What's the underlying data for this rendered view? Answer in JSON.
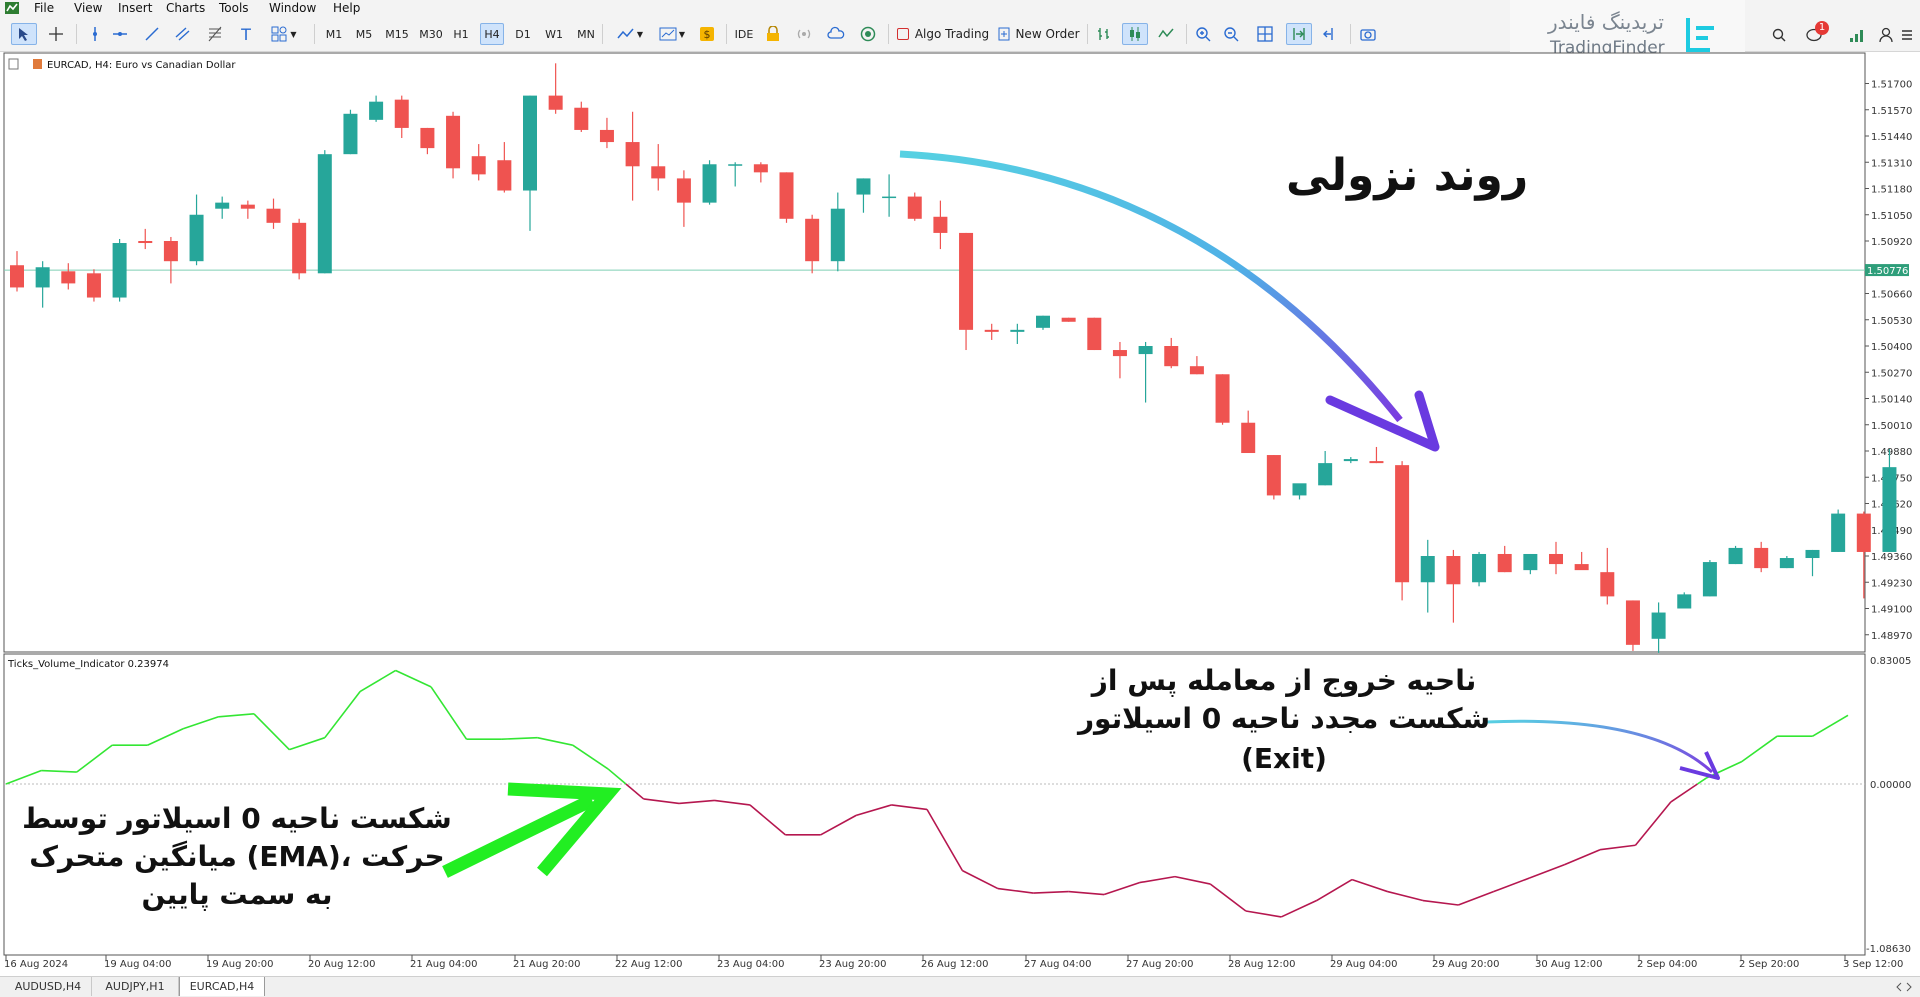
{
  "menu": {
    "items": [
      "File",
      "View",
      "Insert",
      "Charts",
      "Tools",
      "Window",
      "Help"
    ]
  },
  "toolbar": {
    "timeframes": [
      "M1",
      "M5",
      "M15",
      "M30",
      "H1",
      "H4",
      "D1",
      "W1",
      "MN"
    ],
    "selected_timeframe": "H4",
    "ide_label": "IDE",
    "algo_trading_label": "Algo Trading",
    "new_order_label": "New Order",
    "notification_count": "1"
  },
  "watermark": {
    "fa": "تریدینگ فایندر",
    "en": "TradingFinder"
  },
  "chart": {
    "title": "EURCAD, H4:  Euro vs Canadian Dollar",
    "current_price": "1.50776",
    "price_labels": [
      "1.51700",
      "1.51570",
      "1.51440",
      "1.51310",
      "1.51180",
      "1.51050",
      "1.50920",
      "1.50776",
      "1.50660",
      "1.50530",
      "1.50400",
      "1.50270",
      "1.50140",
      "1.50010",
      "1.49880",
      "1.49750",
      "1.49620",
      "1.49490",
      "1.49360",
      "1.49230",
      "1.49100",
      "1.48970"
    ],
    "candles": [
      {
        "o": 1.508,
        "h": 1.5087,
        "l": 1.5067,
        "c": 1.5069
      },
      {
        "o": 1.5069,
        "h": 1.5082,
        "l": 1.5059,
        "c": 1.5079
      },
      {
        "o": 1.5077,
        "h": 1.5081,
        "l": 1.5068,
        "c": 1.5071
      },
      {
        "o": 1.5076,
        "h": 1.5078,
        "l": 1.5062,
        "c": 1.5064
      },
      {
        "o": 1.5064,
        "h": 1.5093,
        "l": 1.5062,
        "c": 1.5091
      },
      {
        "o": 1.5092,
        "h": 1.5098,
        "l": 1.5088,
        "c": 1.5091
      },
      {
        "o": 1.5092,
        "h": 1.5094,
        "l": 1.5071,
        "c": 1.5082
      },
      {
        "o": 1.5082,
        "h": 1.5115,
        "l": 1.508,
        "c": 1.5105
      },
      {
        "o": 1.5108,
        "h": 1.5114,
        "l": 1.5103,
        "c": 1.5111
      },
      {
        "o": 1.511,
        "h": 1.5112,
        "l": 1.5103,
        "c": 1.5108
      },
      {
        "o": 1.5108,
        "h": 1.5113,
        "l": 1.5098,
        "c": 1.5101
      },
      {
        "o": 1.5101,
        "h": 1.5103,
        "l": 1.5073,
        "c": 1.5076
      },
      {
        "o": 1.5076,
        "h": 1.5137,
        "l": 1.5076,
        "c": 1.5135
      },
      {
        "o": 1.5135,
        "h": 1.5157,
        "l": 1.5135,
        "c": 1.5155
      },
      {
        "o": 1.5152,
        "h": 1.5164,
        "l": 1.5151,
        "c": 1.5161
      },
      {
        "o": 1.5162,
        "h": 1.5164,
        "l": 1.5143,
        "c": 1.5148
      },
      {
        "o": 1.5148,
        "h": 1.5148,
        "l": 1.5135,
        "c": 1.5138
      },
      {
        "o": 1.5154,
        "h": 1.5156,
        "l": 1.5123,
        "c": 1.5128
      },
      {
        "o": 1.5134,
        "h": 1.514,
        "l": 1.5122,
        "c": 1.5125
      },
      {
        "o": 1.5132,
        "h": 1.5141,
        "l": 1.5116,
        "c": 1.5117
      },
      {
        "o": 1.5117,
        "h": 1.5164,
        "l": 1.5097,
        "c": 1.5164
      },
      {
        "o": 1.5164,
        "h": 1.518,
        "l": 1.5155,
        "c": 1.5157
      },
      {
        "o": 1.5158,
        "h": 1.5161,
        "l": 1.5146,
        "c": 1.5147
      },
      {
        "o": 1.5147,
        "h": 1.5153,
        "l": 1.5138,
        "c": 1.5141
      },
      {
        "o": 1.5141,
        "h": 1.5156,
        "l": 1.5112,
        "c": 1.5129
      },
      {
        "o": 1.5129,
        "h": 1.514,
        "l": 1.5117,
        "c": 1.5123
      },
      {
        "o": 1.5123,
        "h": 1.5127,
        "l": 1.5099,
        "c": 1.5111
      },
      {
        "o": 1.5111,
        "h": 1.5132,
        "l": 1.511,
        "c": 1.513
      },
      {
        "o": 1.513,
        "h": 1.5131,
        "l": 1.5119,
        "c": 1.513
      },
      {
        "o": 1.513,
        "h": 1.5131,
        "l": 1.5121,
        "c": 1.5126
      },
      {
        "o": 1.5126,
        "h": 1.5126,
        "l": 1.5101,
        "c": 1.5103
      },
      {
        "o": 1.5103,
        "h": 1.5105,
        "l": 1.5076,
        "c": 1.5082
      },
      {
        "o": 1.5082,
        "h": 1.5116,
        "l": 1.5077,
        "c": 1.5108
      },
      {
        "o": 1.5115,
        "h": 1.5123,
        "l": 1.5106,
        "c": 1.5123
      },
      {
        "o": 1.5114,
        "h": 1.5125,
        "l": 1.5104,
        "c": 1.5114
      },
      {
        "o": 1.5114,
        "h": 1.5116,
        "l": 1.5102,
        "c": 1.5103
      },
      {
        "o": 1.5104,
        "h": 1.5112,
        "l": 1.5088,
        "c": 1.5096
      },
      {
        "o": 1.5096,
        "h": 1.5096,
        "l": 1.5038,
        "c": 1.5048
      },
      {
        "o": 1.5048,
        "h": 1.5051,
        "l": 1.5043,
        "c": 1.5047
      },
      {
        "o": 1.5047,
        "h": 1.5051,
        "l": 1.5041,
        "c": 1.5048
      },
      {
        "o": 1.5049,
        "h": 1.5055,
        "l": 1.5048,
        "c": 1.5055
      },
      {
        "o": 1.5054,
        "h": 1.5054,
        "l": 1.5052,
        "c": 1.5052
      },
      {
        "o": 1.5054,
        "h": 1.5054,
        "l": 1.5038,
        "c": 1.5038
      },
      {
        "o": 1.5038,
        "h": 1.5042,
        "l": 1.5024,
        "c": 1.5035
      },
      {
        "o": 1.5036,
        "h": 1.5042,
        "l": 1.5012,
        "c": 1.504
      },
      {
        "o": 1.504,
        "h": 1.5044,
        "l": 1.5029,
        "c": 1.503
      },
      {
        "o": 1.503,
        "h": 1.5035,
        "l": 1.5026,
        "c": 1.5026
      },
      {
        "o": 1.5026,
        "h": 1.5026,
        "l": 1.5001,
        "c": 1.5002
      },
      {
        "o": 1.5002,
        "h": 1.5008,
        "l": 1.4988,
        "c": 1.4987
      },
      {
        "o": 1.4986,
        "h": 1.4986,
        "l": 1.4964,
        "c": 1.4966
      },
      {
        "o": 1.4966,
        "h": 1.4971,
        "l": 1.4964,
        "c": 1.4972
      },
      {
        "o": 1.4971,
        "h": 1.4988,
        "l": 1.4971,
        "c": 1.4982
      },
      {
        "o": 1.4983,
        "h": 1.4985,
        "l": 1.4982,
        "c": 1.4984
      },
      {
        "o": 1.4983,
        "h": 1.499,
        "l": 1.4982,
        "c": 1.4982
      },
      {
        "o": 1.4981,
        "h": 1.4983,
        "l": 1.4914,
        "c": 1.4923
      },
      {
        "o": 1.4923,
        "h": 1.4944,
        "l": 1.4908,
        "c": 1.4936
      },
      {
        "o": 1.4936,
        "h": 1.4939,
        "l": 1.4903,
        "c": 1.4922
      },
      {
        "o": 1.4923,
        "h": 1.4938,
        "l": 1.4921,
        "c": 1.4937
      },
      {
        "o": 1.4937,
        "h": 1.4941,
        "l": 1.4928,
        "c": 1.4928
      },
      {
        "o": 1.4929,
        "h": 1.4937,
        "l": 1.4927,
        "c": 1.4937
      },
      {
        "o": 1.4937,
        "h": 1.4943,
        "l": 1.4927,
        "c": 1.4932
      },
      {
        "o": 1.4932,
        "h": 1.4938,
        "l": 1.493,
        "c": 1.4929
      },
      {
        "o": 1.4928,
        "h": 1.494,
        "l": 1.4912,
        "c": 1.4916
      },
      {
        "o": 1.4914,
        "h": 1.4914,
        "l": 1.4889,
        "c": 1.4892
      },
      {
        "o": 1.4895,
        "h": 1.4913,
        "l": 1.4888,
        "c": 1.4908
      },
      {
        "o": 1.491,
        "h": 1.4918,
        "l": 1.491,
        "c": 1.4917
      },
      {
        "o": 1.4916,
        "h": 1.4934,
        "l": 1.4916,
        "c": 1.4933
      },
      {
        "o": 1.4932,
        "h": 1.4941,
        "l": 1.4932,
        "c": 1.494
      },
      {
        "o": 1.494,
        "h": 1.4943,
        "l": 1.4928,
        "c": 1.493
      },
      {
        "o": 1.493,
        "h": 1.4936,
        "l": 1.493,
        "c": 1.4935
      },
      {
        "o": 1.4935,
        "h": 1.4939,
        "l": 1.4926,
        "c": 1.4939
      },
      {
        "o": 1.4938,
        "h": 1.4959,
        "l": 1.4938,
        "c": 1.4957
      },
      {
        "o": 1.4957,
        "h": 1.4958,
        "l": 1.4915,
        "c": 1.4938
      },
      {
        "o": 1.4938,
        "h": 1.4989,
        "l": 1.4938,
        "c": 1.498
      }
    ],
    "indicator": {
      "title": "Ticks_Volume_Indicator 0.23974",
      "max_label": "0.83005",
      "zero_label": "0.00000",
      "min_label": "-1.08630",
      "values": [
        0.0,
        0.09,
        0.08,
        0.26,
        0.26,
        0.37,
        0.45,
        0.47,
        0.23,
        0.31,
        0.62,
        0.76,
        0.65,
        0.3,
        0.3,
        0.31,
        0.26,
        0.1,
        -0.1,
        -0.13,
        -0.11,
        -0.14,
        -0.34,
        -0.34,
        -0.21,
        -0.14,
        -0.17,
        -0.58,
        -0.7,
        -0.73,
        -0.72,
        -0.74,
        -0.66,
        -0.62,
        -0.67,
        -0.85,
        -0.89,
        -0.78,
        -0.64,
        -0.72,
        -0.78,
        -0.81,
        -0.72,
        -0.63,
        -0.54,
        -0.44,
        -0.41,
        -0.12,
        0.04,
        0.15,
        0.32,
        0.32,
        0.46
      ]
    },
    "time_labels": [
      "16 Aug 2024",
      "19 Aug 04:00",
      "19 Aug 20:00",
      "20 Aug 12:00",
      "21 Aug 04:00",
      "21 Aug 20:00",
      "22 Aug 12:00",
      "23 Aug 04:00",
      "23 Aug 20:00",
      "26 Aug 12:00",
      "27 Aug 04:00",
      "27 Aug 20:00",
      "28 Aug 12:00",
      "29 Aug 04:00",
      "29 Aug 20:00",
      "30 Aug 12:00",
      "2 Sep 04:00",
      "2 Sep 20:00",
      "3 Sep 12:00"
    ],
    "colors": {
      "bull": "#26a69a",
      "bear": "#ef5350",
      "above": "#33e633",
      "below": "#b5174f",
      "current": "#7fcfb4"
    }
  },
  "annotations": {
    "downtrend": "روند نزولی",
    "exit_lines": [
      "ناحیه خروج از معامله پس از",
      "شکست مجدد ناحیه 0 اسیلاتور",
      "(Exit)"
    ],
    "break_lines": [
      "شکست ناحیه 0 اسیلاتور توسط",
      "میانگین متحرک (EMA)، حرکت",
      "به سمت پایین"
    ]
  },
  "tabs": [
    "AUDUSD,H4",
    "AUDJPY,H1",
    "EURCAD,H4"
  ],
  "active_tab": "EURCAD,H4"
}
